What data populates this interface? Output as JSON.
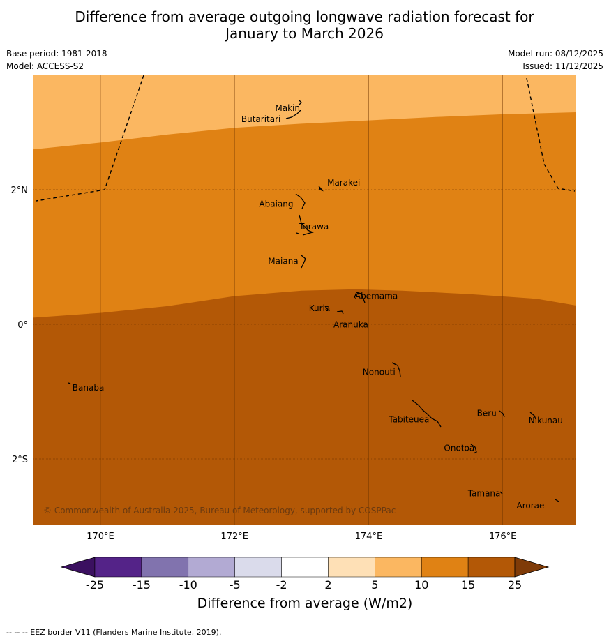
{
  "title": {
    "line1": "Difference from average outgoing longwave radiation forecast for",
    "line2": "January to March 2026"
  },
  "meta": {
    "base_period": "Base period: 1981-2018",
    "model": "Model: ACCESS-S2",
    "model_run": "Model run: 08/12/2025",
    "issued": "Issued: 11/12/2025"
  },
  "axes": {
    "lon_ticks": [
      170,
      172,
      174,
      176
    ],
    "lon_labels": [
      "170°E",
      "172°E",
      "174°E",
      "176°E"
    ],
    "lat_ticks": [
      2,
      0,
      -2
    ],
    "lat_labels": [
      "2°N",
      "0°",
      "2°S"
    ],
    "lon_range": [
      169,
      177.1
    ],
    "lat_range": [
      -3,
      3.7
    ]
  },
  "islands": [
    {
      "name": "Makin",
      "lon": 172.98,
      "lat": 3.2
    },
    {
      "name": "Butaritari",
      "lon": 172.85,
      "lat": 3.1
    },
    {
      "name": "Marakei",
      "lon": 173.3,
      "lat": 2.0
    },
    {
      "name": "Abaiang",
      "lon": 172.97,
      "lat": 1.85
    },
    {
      "name": "Tarawa",
      "lon": 173.05,
      "lat": 1.45
    },
    {
      "name": "Maiana",
      "lon": 173.0,
      "lat": 0.95
    },
    {
      "name": "Abemama",
      "lon": 173.88,
      "lat": 0.4
    },
    {
      "name": "Kuria",
      "lon": 173.4,
      "lat": 0.23
    },
    {
      "name": "Aranuka",
      "lon": 173.6,
      "lat": 0.17
    },
    {
      "name": "Nonouti",
      "lon": 174.4,
      "lat": -0.65
    },
    {
      "name": "Banaba",
      "lon": 169.55,
      "lat": -0.88
    },
    {
      "name": "Tabiteuea",
      "lon": 174.8,
      "lat": -1.35
    },
    {
      "name": "Beru",
      "lon": 176.0,
      "lat": -1.33
    },
    {
      "name": "Nikunau",
      "lon": 176.45,
      "lat": -1.38
    },
    {
      "name": "Onotoa",
      "lon": 175.55,
      "lat": -1.8
    },
    {
      "name": "Tamana",
      "lon": 175.98,
      "lat": -2.5
    },
    {
      "name": "Arorae",
      "lon": 176.8,
      "lat": -2.63
    }
  ],
  "copyright": "© Commonwealth of Australia 2025, Bureau of Meteorology, supported by COSPPac",
  "chart_data": {
    "type": "heatmap",
    "title": "Difference from average outgoing longwave radiation forecast for January to March 2026",
    "field": "OLR anomaly",
    "units": "W/m2",
    "regions": [
      {
        "name": "band-5-10",
        "class": "5 to 10",
        "north_edge_lat": 3.7,
        "south_edge": [
          [
            169,
            2.6
          ],
          [
            170,
            2.7
          ],
          [
            171,
            2.82
          ],
          [
            172,
            2.92
          ],
          [
            173,
            2.98
          ],
          [
            174,
            3.03
          ],
          [
            175,
            3.08
          ],
          [
            176,
            3.12
          ],
          [
            177.1,
            3.15
          ]
        ]
      },
      {
        "name": "band-10-15",
        "class": "10 to 15",
        "south_edge": [
          [
            169,
            0.1
          ],
          [
            170,
            0.17
          ],
          [
            171,
            0.27
          ],
          [
            172,
            0.42
          ],
          [
            173,
            0.5
          ],
          [
            173.8,
            0.52
          ],
          [
            174.5,
            0.5
          ],
          [
            175.5,
            0.45
          ],
          [
            176.5,
            0.38
          ],
          [
            177.1,
            0.28
          ]
        ]
      },
      {
        "name": "band-15-25",
        "class": "15 to 25",
        "south_edge_lat": -3.0
      }
    ],
    "colorbar": {
      "label": "Difference from average (W/m2)",
      "ticks": [
        "-25",
        "-15",
        "-10",
        "-5",
        "-2",
        "2",
        "5",
        "10",
        "15",
        "25"
      ],
      "colors": [
        "#3b1060",
        "#542388",
        "#8173ae",
        "#b2aad3",
        "#dadbeb",
        "#ffffff",
        "#fee0b6",
        "#fbb761",
        "#e08214",
        "#b35806",
        "#7f3b08"
      ]
    }
  },
  "colors": {
    "band_5_10": "#fbb761",
    "band_10_15": "#e08214",
    "band_15_25": "#b35806",
    "gridline": "#6e3400"
  },
  "footer": "--  --  -- EEZ border V11 (Flanders Marine Institute, 2019)."
}
